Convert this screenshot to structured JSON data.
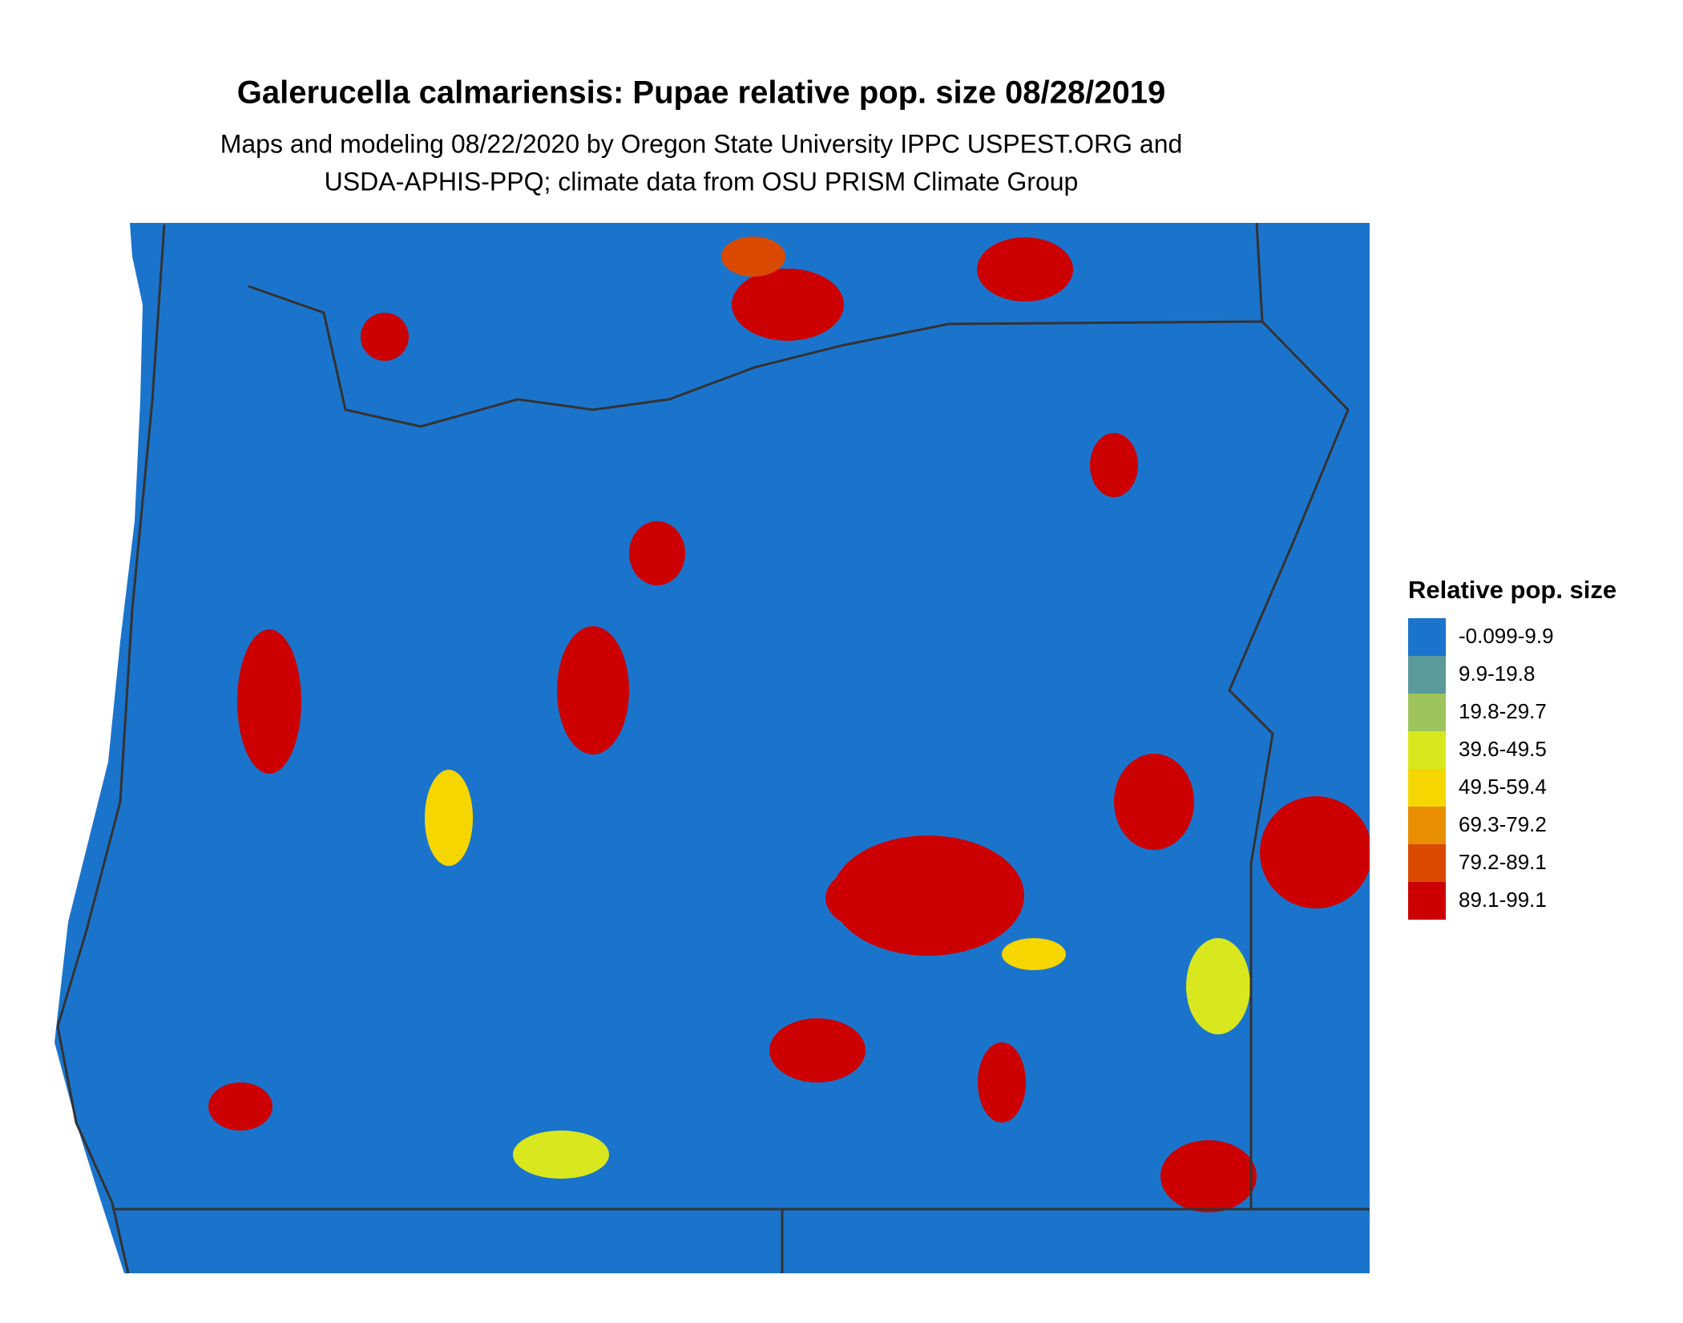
{
  "title": "Galerucella calmariensis: Pupae relative pop. size 08/28/2019",
  "subtitle": [
    "Maps and modeling 08/22/2020 by Oregon State University IPPC USPEST.ORG and",
    "USDA-APHIS-PPQ; climate data from OSU PRISM Climate Group"
  ],
  "legend": {
    "title": "Relative pop. size",
    "items": [
      {
        "label": "-0.099-9.9",
        "color": "#1b74cc"
      },
      {
        "label": "9.9-19.8",
        "color": "#5a9a9a"
      },
      {
        "label": "19.8-29.7",
        "color": "#9cc35c"
      },
      {
        "label": "39.6-49.5",
        "color": "#d9e81e"
      },
      {
        "label": "49.5-59.4",
        "color": "#f5d600"
      },
      {
        "label": "69.3-79.2",
        "color": "#e88e00"
      },
      {
        "label": "79.2-89.1",
        "color": "#d94a00"
      },
      {
        "label": "89.1-99.1",
        "color": "#cc0000"
      }
    ]
  }
}
